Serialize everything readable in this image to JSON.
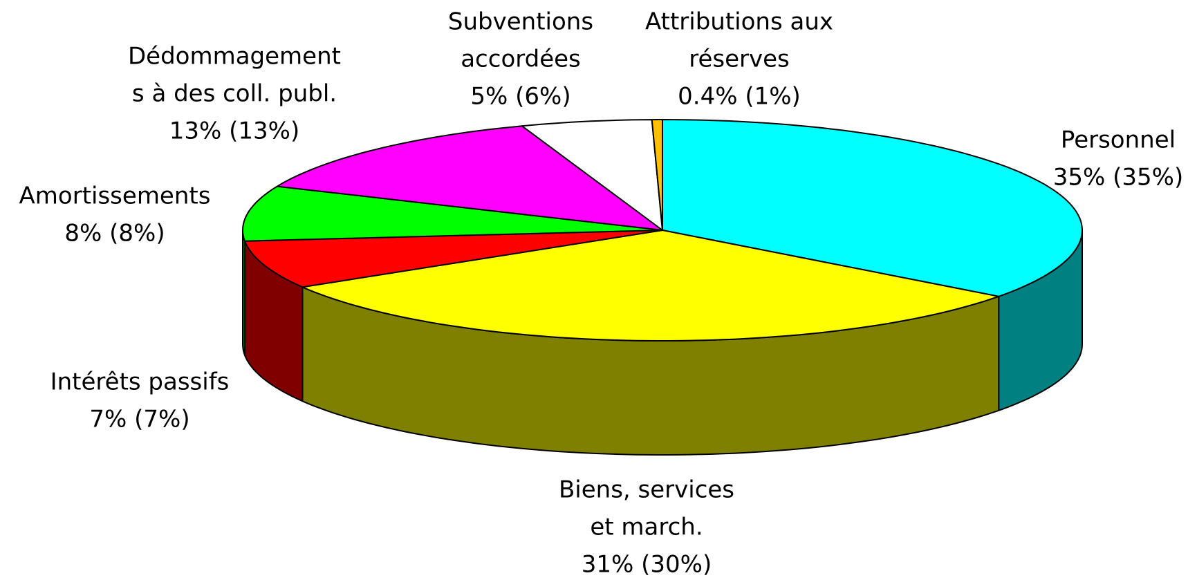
{
  "chart_data": {
    "type": "pie3d",
    "categories": [
      [
        "Personnel"
      ],
      [
        "Biens, services",
        "et march."
      ],
      [
        "Intérêts passifs"
      ],
      [
        "Amortissements"
      ],
      [
        "Dédommagement",
        "s à des coll. publ."
      ],
      [
        "Subventions",
        "accordées"
      ],
      [
        "Attributions aux",
        "réserves"
      ]
    ],
    "values": [
      35,
      31,
      7,
      8,
      13,
      5,
      0.4
    ],
    "value_labels": [
      "35% (35%)",
      "31% (30%)",
      "7% (7%)",
      "8% (8%)",
      "13% (13%)",
      "5% (6%)",
      "0.4% (1%)"
    ],
    "colors": [
      "#00ffff",
      "#ffff00",
      "#ff0000",
      "#00ff00",
      "#ff00ff",
      "#ffffff",
      "#ffc000"
    ]
  }
}
